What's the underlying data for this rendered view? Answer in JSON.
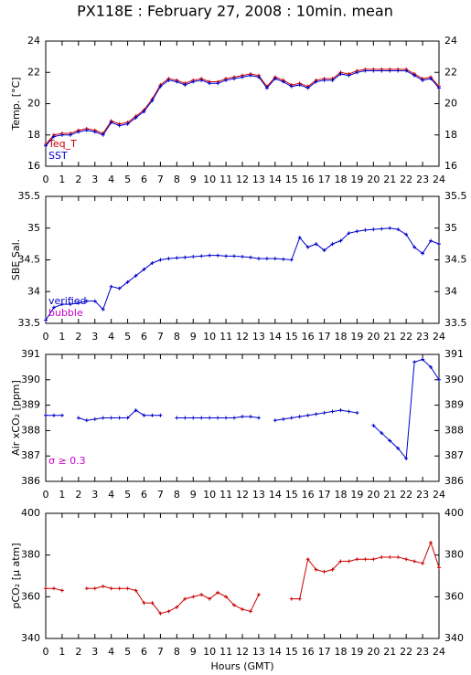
{
  "chart_data": [
    {
      "type": "line",
      "title": "PX118E : February 27, 2008 : 10min. mean",
      "ylabel": "Temp. [°C]",
      "x": [
        0,
        0.5,
        1,
        1.5,
        2,
        2.5,
        3,
        3.5,
        4,
        4.5,
        5,
        5.5,
        6,
        6.5,
        7,
        7.5,
        8,
        8.5,
        9,
        9.5,
        10,
        10.5,
        11,
        11.5,
        12,
        12.5,
        13,
        13.5,
        14,
        14.5,
        15,
        15.5,
        16,
        16.5,
        17,
        17.5,
        18,
        18.5,
        19,
        19.5,
        20,
        20.5,
        21,
        21.5,
        22,
        22.5,
        23,
        23.5,
        24
      ],
      "series": [
        {
          "name": "Teq_T",
          "color": "#cc0000",
          "values": [
            17.4,
            18.0,
            18.1,
            18.1,
            18.3,
            18.4,
            18.3,
            18.1,
            18.9,
            18.7,
            18.8,
            19.2,
            19.6,
            20.3,
            21.2,
            21.6,
            21.5,
            21.3,
            21.5,
            21.6,
            21.4,
            21.4,
            21.6,
            21.7,
            21.8,
            21.9,
            21.8,
            21.1,
            21.7,
            21.5,
            21.2,
            21.3,
            21.1,
            21.5,
            21.6,
            21.6,
            22.0,
            21.9,
            22.1,
            22.2,
            22.2,
            22.2,
            22.2,
            22.2,
            22.2,
            21.9,
            21.6,
            21.7,
            21.1
          ]
        },
        {
          "name": "SST",
          "color": "#0000cc",
          "values": [
            17.3,
            17.9,
            18.0,
            18.0,
            18.2,
            18.3,
            18.2,
            18.0,
            18.8,
            18.6,
            18.7,
            19.1,
            19.5,
            20.2,
            21.1,
            21.5,
            21.4,
            21.2,
            21.4,
            21.5,
            21.3,
            21.3,
            21.5,
            21.6,
            21.7,
            21.8,
            21.7,
            21.0,
            21.6,
            21.4,
            21.1,
            21.2,
            21.0,
            21.4,
            21.5,
            21.5,
            21.9,
            21.8,
            22.0,
            22.1,
            22.1,
            22.1,
            22.1,
            22.1,
            22.1,
            21.8,
            21.5,
            21.6,
            21.0
          ]
        }
      ],
      "xlim": [
        0,
        24
      ],
      "xticks": [
        0,
        1,
        2,
        3,
        4,
        5,
        6,
        7,
        8,
        9,
        10,
        11,
        12,
        13,
        14,
        15,
        16,
        17,
        18,
        19,
        20,
        21,
        22,
        23,
        24
      ],
      "ylim": [
        16,
        24
      ],
      "yticks": [
        16,
        18,
        20,
        22,
        24
      ]
    },
    {
      "type": "line",
      "ylabel": "SBE Sal.",
      "legend": [
        {
          "name": "verified",
          "color": "#0000cc"
        },
        {
          "name": "bubble",
          "color": "#cc00cc"
        }
      ],
      "x": [
        0,
        0.5,
        1,
        1.5,
        2,
        2.5,
        3,
        3.5,
        4,
        4.5,
        5,
        5.5,
        6,
        6.5,
        7,
        7.5,
        8,
        8.5,
        9,
        9.5,
        10,
        10.5,
        11,
        11.5,
        12,
        12.5,
        13,
        13.5,
        14,
        14.5,
        15,
        15.5,
        16,
        16.5,
        17,
        17.5,
        18,
        18.5,
        19,
        19.5,
        20,
        20.5,
        21,
        21.5,
        22,
        22.5,
        23,
        23.5,
        24
      ],
      "series": [
        {
          "color": "#0000cc",
          "values": [
            33.55,
            33.75,
            33.8,
            33.8,
            33.82,
            33.85,
            33.85,
            33.72,
            34.08,
            34.05,
            34.15,
            34.25,
            34.35,
            34.45,
            34.5,
            34.52,
            34.53,
            34.54,
            34.55,
            34.56,
            34.57,
            34.57,
            34.56,
            34.56,
            34.55,
            34.54,
            34.52,
            34.52,
            34.52,
            34.51,
            34.5,
            34.85,
            34.7,
            34.75,
            34.65,
            34.75,
            34.8,
            34.92,
            34.95,
            34.97,
            34.98,
            34.99,
            35.0,
            34.98,
            34.9,
            34.7,
            34.6,
            34.8,
            34.75
          ]
        }
      ],
      "xlim": [
        0,
        24
      ],
      "xticks": [
        0,
        1,
        2,
        3,
        4,
        5,
        6,
        7,
        8,
        9,
        10,
        11,
        12,
        13,
        14,
        15,
        16,
        17,
        18,
        19,
        20,
        21,
        22,
        23,
        24
      ],
      "ylim": [
        33.5,
        35.5
      ],
      "yticks": [
        33.5,
        34,
        34.5,
        35,
        35.5
      ]
    },
    {
      "type": "line",
      "ylabel": "Air xCO₂ [ppm]",
      "legend": [
        {
          "name": "σ ≥ 0.3",
          "color": "#cc00cc"
        }
      ],
      "x": [
        0,
        0.5,
        1,
        1.5,
        2,
        2.5,
        3,
        3.5,
        4,
        4.5,
        5,
        5.5,
        6,
        6.5,
        7,
        7.5,
        8,
        8.5,
        9,
        9.5,
        10,
        10.5,
        11,
        11.5,
        12,
        12.5,
        13,
        13.5,
        14,
        14.5,
        15,
        15.5,
        16,
        16.5,
        17,
        17.5,
        18,
        18.5,
        19,
        19.5,
        20,
        20.5,
        21,
        21.5,
        22,
        22.5,
        23,
        23.5,
        24
      ],
      "series": [
        {
          "color": "#0000cc",
          "values": [
            388.6,
            388.6,
            388.6,
            null,
            388.5,
            388.4,
            388.45,
            388.5,
            388.5,
            388.5,
            388.5,
            388.8,
            388.6,
            388.6,
            388.6,
            null,
            388.5,
            388.5,
            388.5,
            388.5,
            388.5,
            388.5,
            388.5,
            388.5,
            388.55,
            388.55,
            388.5,
            null,
            388.4,
            388.45,
            388.5,
            388.55,
            388.6,
            388.65,
            388.7,
            388.75,
            388.8,
            388.75,
            388.7,
            null,
            388.2,
            387.9,
            387.6,
            387.3,
            386.9,
            390.7,
            390.8,
            390.5,
            390.0
          ]
        }
      ],
      "xlim": [
        0,
        24
      ],
      "xticks": [
        0,
        1,
        2,
        3,
        4,
        5,
        6,
        7,
        8,
        9,
        10,
        11,
        12,
        13,
        14,
        15,
        16,
        17,
        18,
        19,
        20,
        21,
        22,
        23,
        24
      ],
      "ylim": [
        386,
        391
      ],
      "yticks": [
        386,
        387,
        388,
        389,
        390,
        391
      ]
    },
    {
      "type": "line",
      "ylabel": "pCO₂ [µ atm]",
      "xlabel": "Hours (GMT)",
      "x": [
        0,
        0.5,
        1,
        1.5,
        2,
        2.5,
        3,
        3.5,
        4,
        4.5,
        5,
        5.5,
        6,
        6.5,
        7,
        7.5,
        8,
        8.5,
        9,
        9.5,
        10,
        10.5,
        11,
        11.5,
        12,
        12.5,
        13,
        13.5,
        14,
        14.5,
        15,
        15.5,
        16,
        16.5,
        17,
        17.5,
        18,
        18.5,
        19,
        19.5,
        20,
        20.5,
        21,
        21.5,
        22,
        22.5,
        23,
        23.5,
        24
      ],
      "series": [
        {
          "color": "#cc0000",
          "values": [
            364,
            364,
            363,
            null,
            null,
            364,
            364,
            365,
            364,
            364,
            364,
            363,
            357,
            357,
            352,
            353,
            355,
            359,
            360,
            361,
            359,
            362,
            360,
            356,
            354,
            353,
            361,
            null,
            null,
            null,
            359,
            359,
            378,
            373,
            372,
            373,
            377,
            377,
            378,
            378,
            378,
            379,
            379,
            379,
            378,
            377,
            376,
            386,
            374
          ]
        }
      ],
      "xlim": [
        0,
        24
      ],
      "xticks": [
        0,
        1,
        2,
        3,
        4,
        5,
        6,
        7,
        8,
        9,
        10,
        11,
        12,
        13,
        14,
        15,
        16,
        17,
        18,
        19,
        20,
        21,
        22,
        23,
        24
      ],
      "ylim": [
        340,
        400
      ],
      "yticks": [
        340,
        360,
        380,
        400
      ]
    }
  ]
}
